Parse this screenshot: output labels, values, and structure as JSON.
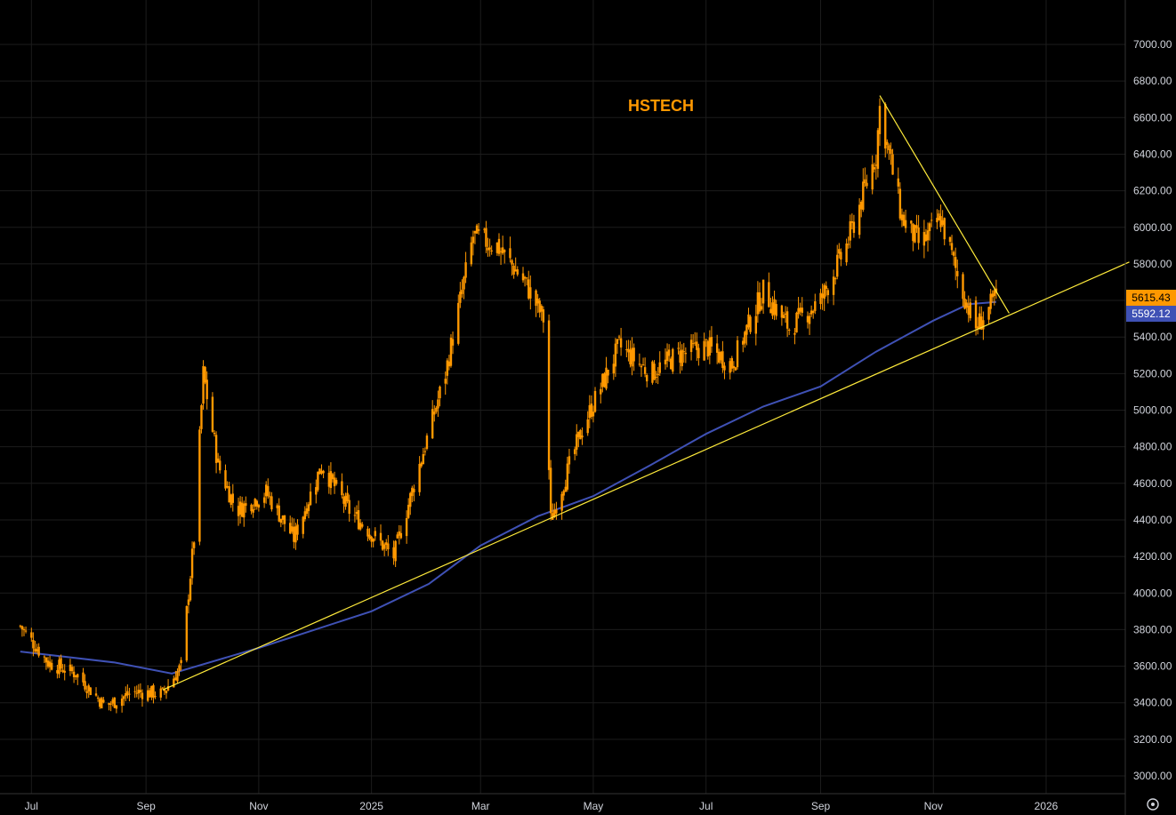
{
  "chart_data": {
    "type": "candlestick",
    "title": "HSTECH",
    "x_ticks": [
      "Jul",
      "Sep",
      "Nov",
      "2025",
      "Mar",
      "May",
      "Jul",
      "Sep",
      "Nov",
      "2026"
    ],
    "y_ticks": [
      "3000.00",
      "3200.00",
      "3400.00",
      "3600.00",
      "3800.00",
      "4000.00",
      "4200.00",
      "4400.00",
      "4600.00",
      "4800.00",
      "5000.00",
      "5200.00",
      "5400.00",
      "5600.00",
      "5800.00",
      "6000.00",
      "6200.00",
      "6400.00",
      "6600.00",
      "6800.00",
      "7000.00"
    ],
    "ylim": [
      2900,
      7200
    ],
    "grid": true,
    "last_price": {
      "value": 5615.43,
      "label": "5615.43",
      "color": "#ff9800"
    },
    "moving_average": {
      "value": 5592.12,
      "label": "5592.12",
      "color": "#3f51b5"
    },
    "close_series_approx": [
      [
        "2024-06-25",
        3820
      ],
      [
        "2024-07-10",
        3620
      ],
      [
        "2024-07-25",
        3560
      ],
      [
        "2024-08-10",
        3380
      ],
      [
        "2024-08-25",
        3460
      ],
      [
        "2024-09-10",
        3450
      ],
      [
        "2024-09-20",
        3600
      ],
      [
        "2024-09-27",
        4300
      ],
      [
        "2024-10-02",
        5200
      ],
      [
        "2024-10-10",
        4700
      ],
      [
        "2024-10-20",
        4450
      ],
      [
        "2024-11-05",
        4550
      ],
      [
        "2024-11-20",
        4300
      ],
      [
        "2024-12-05",
        4700
      ],
      [
        "2024-12-20",
        4450
      ],
      [
        "2025-01-13",
        4200
      ],
      [
        "2025-01-27",
        4700
      ],
      [
        "2025-02-10",
        5200
      ],
      [
        "2025-02-25",
        5950
      ],
      [
        "2025-03-10",
        5900
      ],
      [
        "2025-03-25",
        5700
      ],
      [
        "2025-04-04",
        5500
      ],
      [
        "2025-04-08",
        4400
      ],
      [
        "2025-04-25",
        4900
      ],
      [
        "2025-05-15",
        5350
      ],
      [
        "2025-06-01",
        5200
      ],
      [
        "2025-06-15",
        5300
      ],
      [
        "2025-07-01",
        5350
      ],
      [
        "2025-07-15",
        5250
      ],
      [
        "2025-08-01",
        5650
      ],
      [
        "2025-08-15",
        5450
      ],
      [
        "2025-09-01",
        5600
      ],
      [
        "2025-09-15",
        5900
      ],
      [
        "2025-10-01",
        6400
      ],
      [
        "2025-10-03",
        6650
      ],
      [
        "2025-10-15",
        6050
      ],
      [
        "2025-10-25",
        5900
      ],
      [
        "2025-11-05",
        6050
      ],
      [
        "2025-11-15",
        5700
      ],
      [
        "2025-11-24",
        5450
      ],
      [
        "2025-12-05",
        5615
      ]
    ],
    "ma_series_approx": [
      [
        "2024-06-25",
        3680
      ],
      [
        "2024-08-15",
        3620
      ],
      [
        "2024-09-15",
        3560
      ],
      [
        "2024-11-01",
        3700
      ],
      [
        "2025-01-01",
        3900
      ],
      [
        "2025-02-01",
        4050
      ],
      [
        "2025-03-01",
        4260
      ],
      [
        "2025-04-01",
        4420
      ],
      [
        "2025-05-01",
        4530
      ],
      [
        "2025-06-01",
        4700
      ],
      [
        "2025-07-01",
        4870
      ],
      [
        "2025-08-01",
        5020
      ],
      [
        "2025-09-01",
        5130
      ],
      [
        "2025-10-01",
        5320
      ],
      [
        "2025-11-01",
        5490
      ],
      [
        "2025-11-20",
        5580
      ],
      [
        "2025-12-05",
        5592
      ]
    ],
    "trendlines": [
      {
        "name": "support",
        "color": "#ffeb3b",
        "from": [
          "2024-09-10",
          3470
        ],
        "to": [
          "2026-02-15",
          5810
        ]
      },
      {
        "name": "resistance",
        "color": "#ffeb3b",
        "from": [
          "2025-10-03",
          6720
        ],
        "to": [
          "2025-12-12",
          5530
        ]
      }
    ]
  },
  "colors": {
    "background": "#000000",
    "grid": "#1c1c1c",
    "axis_text": "#d1d4dc",
    "candle": "#ff9800",
    "ma": "#3f51b5",
    "trendline": "#ffeb3b",
    "title": "#ff9800"
  },
  "icons": {
    "settings": "gear-icon"
  }
}
